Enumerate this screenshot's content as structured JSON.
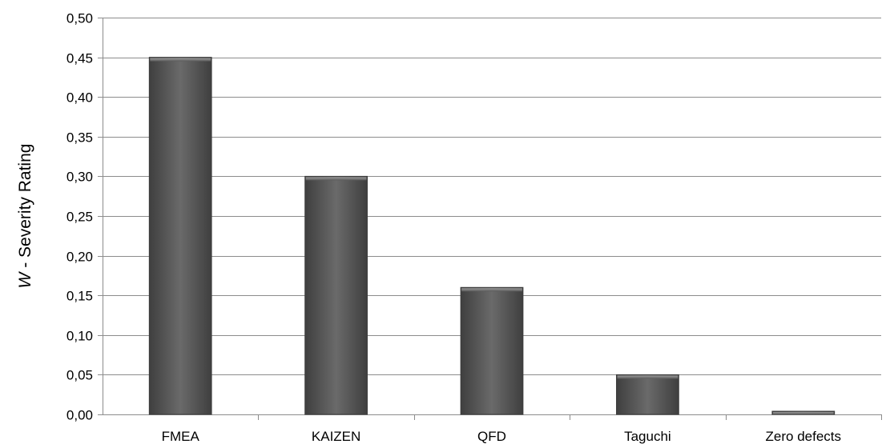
{
  "chart_data": {
    "type": "bar",
    "title": "",
    "xlabel": "",
    "ylabel": {
      "italic_part": "W",
      "rest": " - Severity Rating"
    },
    "categories": [
      "FMEA",
      "KAIZEN",
      "QFD",
      "Taguchi",
      "Zero defects"
    ],
    "values": [
      0.45,
      0.3,
      0.16,
      0.05,
      0.004
    ],
    "ylim": [
      0,
      0.5
    ],
    "yticks": [
      0.0,
      0.05,
      0.1,
      0.15,
      0.2,
      0.25,
      0.3,
      0.35,
      0.4,
      0.45,
      0.5
    ],
    "ytick_labels": [
      "0,00",
      "0,05",
      "0,10",
      "0,15",
      "0,20",
      "0,25",
      "0,30",
      "0,35",
      "0,40",
      "0,45",
      "0,50"
    ],
    "grid": true,
    "legend": "none",
    "colors": {
      "bar_fill": "#5a5a5a",
      "bar_highlight": "#7a7a7a",
      "bar_edge": "#3c3c3c",
      "grid": "#8c8c8c"
    }
  }
}
